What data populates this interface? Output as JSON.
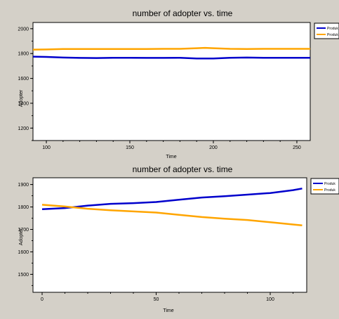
{
  "charts": [
    {
      "title": "number of adopter vs. time",
      "xlabel": "Time",
      "ylabel": "Adopter",
      "legend": [
        "Produk",
        "Produk"
      ],
      "xticks": [
        100,
        150,
        200,
        250
      ],
      "yticks": [
        1200,
        1400,
        1600,
        1800,
        2000
      ]
    },
    {
      "title": "number of adopter vs. time",
      "xlabel": "Time",
      "ylabel": "Adopter",
      "legend": [
        "Produk",
        "Produk"
      ],
      "xticks": [
        0,
        50,
        100
      ],
      "yticks": [
        1500,
        1600,
        1700,
        1800,
        1900
      ]
    }
  ],
  "chart_data": [
    {
      "type": "line",
      "title": "number of adopter vs. time",
      "xlabel": "Time",
      "ylabel": "Adopter",
      "xlim": [
        92,
        258
      ],
      "ylim": [
        1100,
        2050
      ],
      "legend_position": "right",
      "grid": false,
      "series": [
        {
          "name": "Produk",
          "color": "#0000cc",
          "x": [
            92,
            100,
            110,
            120,
            130,
            140,
            150,
            160,
            170,
            180,
            190,
            200,
            210,
            220,
            230,
            240,
            250,
            258
          ],
          "values": [
            1775,
            1773,
            1768,
            1765,
            1764,
            1766,
            1766,
            1765,
            1765,
            1766,
            1760,
            1760,
            1766,
            1768,
            1766,
            1766,
            1766,
            1766
          ]
        },
        {
          "name": "Produk",
          "color": "#ffa500",
          "x": [
            92,
            100,
            110,
            120,
            130,
            140,
            150,
            160,
            170,
            180,
            190,
            195,
            200,
            210,
            220,
            230,
            240,
            250,
            258
          ],
          "values": [
            1832,
            1833,
            1836,
            1837,
            1837,
            1837,
            1836,
            1836,
            1838,
            1838,
            1843,
            1846,
            1843,
            1838,
            1837,
            1838,
            1838,
            1838,
            1838
          ]
        }
      ]
    },
    {
      "type": "line",
      "title": "number of adopter vs. time",
      "xlabel": "Time",
      "ylabel": "Adopter",
      "xlim": [
        -4,
        116
      ],
      "ylim": [
        1420,
        1930
      ],
      "legend_position": "right",
      "grid": false,
      "series": [
        {
          "name": "Produk",
          "color": "#0000cc",
          "x": [
            0,
            10,
            20,
            30,
            40,
            50,
            60,
            70,
            80,
            90,
            100,
            110,
            114
          ],
          "values": [
            1790,
            1795,
            1806,
            1814,
            1817,
            1822,
            1832,
            1842,
            1848,
            1855,
            1862,
            1875,
            1882
          ]
        },
        {
          "name": "Produk",
          "color": "#ffa500",
          "x": [
            0,
            10,
            20,
            30,
            40,
            50,
            60,
            70,
            80,
            90,
            100,
            110,
            114
          ],
          "values": [
            1810,
            1802,
            1792,
            1785,
            1780,
            1775,
            1765,
            1755,
            1748,
            1742,
            1732,
            1722,
            1718
          ]
        }
      ]
    }
  ]
}
